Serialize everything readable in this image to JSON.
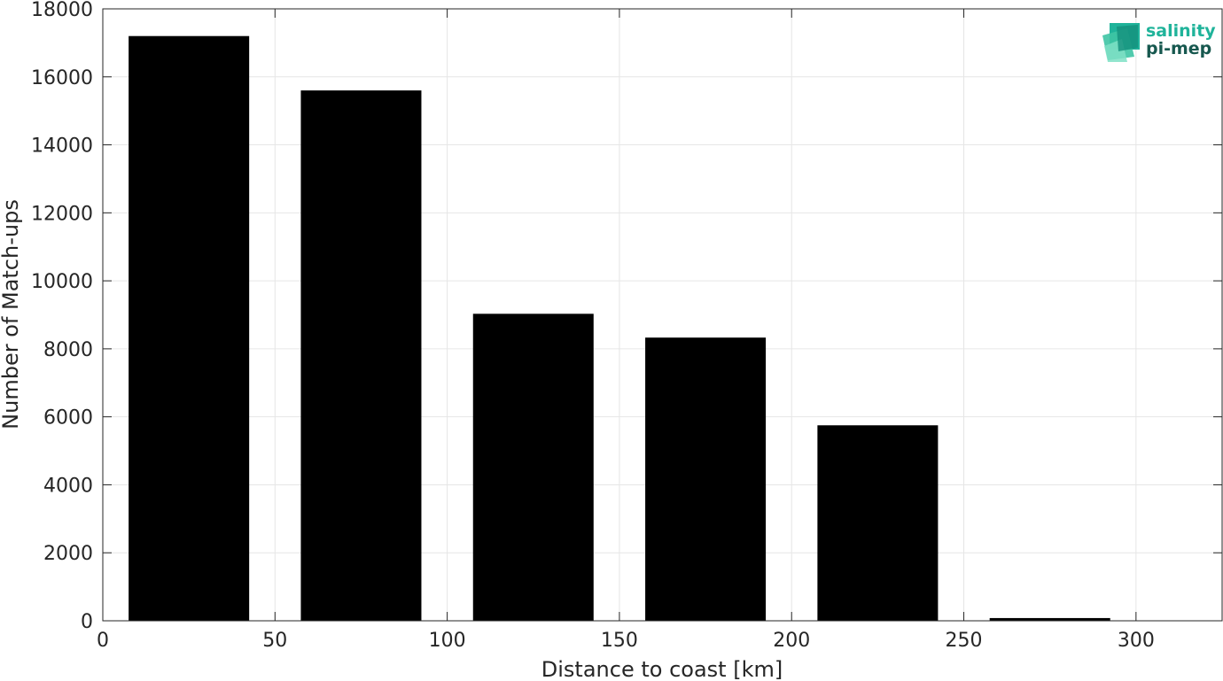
{
  "chart_data": {
    "type": "bar",
    "xlabel": "Distance to coast [km]",
    "ylabel": "Number of Match-ups",
    "x": [
      25,
      75,
      125,
      175,
      225,
      275
    ],
    "bin_width": 35,
    "values": [
      17200,
      15600,
      9030,
      8330,
      5750,
      80
    ],
    "xlim": [
      0,
      325
    ],
    "ylim": [
      0,
      18000
    ],
    "xticks": [
      0,
      50,
      100,
      150,
      200,
      250,
      300
    ],
    "yticks": [
      0,
      2000,
      4000,
      6000,
      8000,
      10000,
      12000,
      14000,
      16000,
      18000
    ],
    "grid": true,
    "bar_color": "#000000",
    "grid_color": "#e6e6e6",
    "axis_color": "#262626"
  },
  "logo": {
    "line1": "salinity",
    "line2": "pi-mep",
    "color1": "#1fb39a",
    "color2": "#17584f"
  }
}
